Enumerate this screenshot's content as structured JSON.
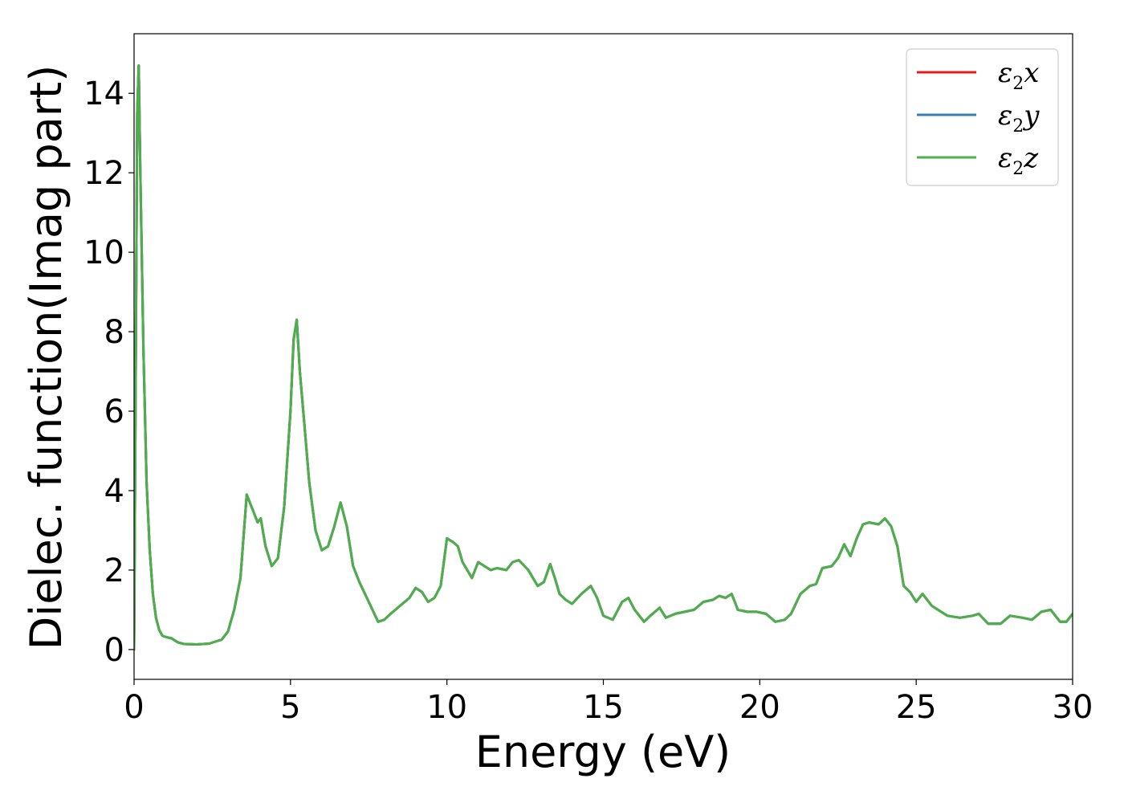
{
  "chart_data": {
    "type": "line",
    "xlabel": "Energy (eV)",
    "ylabel": "Dielec. function(Imag part)",
    "xlim": [
      0,
      30
    ],
    "ylim": [
      -0.75,
      15.5
    ],
    "xticks": [
      0,
      5,
      10,
      15,
      20,
      25,
      30
    ],
    "yticks": [
      0,
      2,
      4,
      6,
      8,
      10,
      12,
      14
    ],
    "grid": false,
    "legend_position": "top-right",
    "series": [
      {
        "name": "ε2x",
        "legend_base": "ε",
        "legend_sub": "2",
        "legend_suffix": "x",
        "color": "#e41a1c",
        "x": [
          0,
          0.05,
          0.1,
          0.15,
          0.2,
          0.3,
          0.4,
          0.5,
          0.6,
          0.7,
          0.8,
          0.9,
          1.0,
          1.2,
          1.4,
          1.6,
          2.0,
          2.4,
          2.8,
          3.0,
          3.2,
          3.4,
          3.6,
          3.8,
          3.95,
          4.05,
          4.2,
          4.4,
          4.6,
          4.8,
          5.0,
          5.1,
          5.2,
          5.3,
          5.45,
          5.6,
          5.8,
          6.0,
          6.2,
          6.4,
          6.6,
          6.8,
          7.0,
          7.2,
          7.5,
          7.8,
          8.0,
          8.2,
          8.5,
          8.8,
          9.0,
          9.2,
          9.4,
          9.6,
          9.8,
          10.0,
          10.2,
          10.35,
          10.5,
          10.8,
          11.0,
          11.2,
          11.4,
          11.6,
          11.9,
          12.1,
          12.3,
          12.6,
          12.9,
          13.1,
          13.3,
          13.45,
          13.6,
          13.8,
          14.0,
          14.3,
          14.6,
          14.8,
          15.0,
          15.3,
          15.6,
          15.8,
          16.0,
          16.3,
          16.5,
          16.8,
          17.0,
          17.3,
          17.6,
          17.9,
          18.2,
          18.5,
          18.7,
          18.9,
          19.1,
          19.3,
          19.6,
          19.9,
          20.2,
          20.5,
          20.8,
          21.0,
          21.3,
          21.6,
          21.8,
          22.0,
          22.3,
          22.5,
          22.7,
          22.9,
          23.1,
          23.3,
          23.5,
          23.8,
          24.0,
          24.2,
          24.4,
          24.6,
          24.8,
          25.0,
          25.2,
          25.5,
          25.8,
          26.0,
          26.4,
          26.8,
          27.0,
          27.3,
          27.7,
          28.0,
          28.4,
          28.7,
          29.0,
          29.3,
          29.6,
          29.8,
          30.0
        ],
        "y": [
          0,
          6.5,
          13.5,
          14.7,
          12.0,
          7.5,
          4.2,
          2.5,
          1.4,
          0.8,
          0.5,
          0.35,
          0.32,
          0.28,
          0.18,
          0.14,
          0.13,
          0.15,
          0.25,
          0.45,
          1.0,
          1.8,
          3.9,
          3.5,
          3.2,
          3.3,
          2.6,
          2.1,
          2.3,
          3.6,
          6.0,
          7.8,
          8.3,
          7.0,
          5.6,
          4.2,
          3.0,
          2.5,
          2.6,
          3.1,
          3.7,
          3.1,
          2.1,
          1.7,
          1.2,
          0.7,
          0.75,
          0.9,
          1.1,
          1.3,
          1.55,
          1.45,
          1.2,
          1.3,
          1.6,
          2.8,
          2.7,
          2.6,
          2.2,
          1.8,
          2.2,
          2.1,
          2.0,
          2.05,
          2.0,
          2.2,
          2.25,
          2.0,
          1.6,
          1.7,
          2.15,
          1.8,
          1.4,
          1.25,
          1.15,
          1.4,
          1.6,
          1.3,
          0.85,
          0.75,
          1.2,
          1.3,
          1.0,
          0.7,
          0.85,
          1.05,
          0.8,
          0.9,
          0.95,
          1.0,
          1.2,
          1.25,
          1.35,
          1.3,
          1.4,
          1.0,
          0.95,
          0.95,
          0.9,
          0.7,
          0.75,
          0.9,
          1.4,
          1.6,
          1.65,
          2.05,
          2.1,
          2.3,
          2.65,
          2.35,
          2.8,
          3.15,
          3.2,
          3.15,
          3.3,
          3.1,
          2.6,
          1.6,
          1.45,
          1.2,
          1.4,
          1.1,
          0.95,
          0.85,
          0.8,
          0.85,
          0.9,
          0.65,
          0.65,
          0.85,
          0.8,
          0.75,
          0.95,
          1.0,
          0.7,
          0.7,
          0.9
        ]
      },
      {
        "name": "ε2y",
        "legend_base": "ε",
        "legend_sub": "2",
        "legend_suffix": "y",
        "color": "#377eb8",
        "x": [
          0,
          0.05,
          0.1,
          0.15,
          0.2,
          0.3,
          0.4,
          0.5,
          0.6,
          0.7,
          0.8,
          0.9,
          1.0,
          1.2,
          1.4,
          1.6,
          2.0,
          2.4,
          2.8,
          3.0,
          3.2,
          3.4,
          3.6,
          3.8,
          3.95,
          4.05,
          4.2,
          4.4,
          4.6,
          4.8,
          5.0,
          5.1,
          5.2,
          5.3,
          5.45,
          5.6,
          5.8,
          6.0,
          6.2,
          6.4,
          6.6,
          6.8,
          7.0,
          7.2,
          7.5,
          7.8,
          8.0,
          8.2,
          8.5,
          8.8,
          9.0,
          9.2,
          9.4,
          9.6,
          9.8,
          10.0,
          10.2,
          10.35,
          10.5,
          10.8,
          11.0,
          11.2,
          11.4,
          11.6,
          11.9,
          12.1,
          12.3,
          12.6,
          12.9,
          13.1,
          13.3,
          13.45,
          13.6,
          13.8,
          14.0,
          14.3,
          14.6,
          14.8,
          15.0,
          15.3,
          15.6,
          15.8,
          16.0,
          16.3,
          16.5,
          16.8,
          17.0,
          17.3,
          17.6,
          17.9,
          18.2,
          18.5,
          18.7,
          18.9,
          19.1,
          19.3,
          19.6,
          19.9,
          20.2,
          20.5,
          20.8,
          21.0,
          21.3,
          21.6,
          21.8,
          22.0,
          22.3,
          22.5,
          22.7,
          22.9,
          23.1,
          23.3,
          23.5,
          23.8,
          24.0,
          24.2,
          24.4,
          24.6,
          24.8,
          25.0,
          25.2,
          25.5,
          25.8,
          26.0,
          26.4,
          26.8,
          27.0,
          27.3,
          27.7,
          28.0,
          28.4,
          28.7,
          29.0,
          29.3,
          29.6,
          29.8,
          30.0
        ],
        "y": [
          0,
          6.5,
          13.5,
          14.7,
          12.0,
          7.5,
          4.2,
          2.5,
          1.4,
          0.8,
          0.5,
          0.35,
          0.32,
          0.28,
          0.18,
          0.14,
          0.13,
          0.15,
          0.25,
          0.45,
          1.0,
          1.8,
          3.9,
          3.5,
          3.2,
          3.3,
          2.6,
          2.1,
          2.3,
          3.6,
          6.0,
          7.8,
          8.3,
          7.0,
          5.6,
          4.2,
          3.0,
          2.5,
          2.6,
          3.1,
          3.7,
          3.1,
          2.1,
          1.7,
          1.2,
          0.7,
          0.75,
          0.9,
          1.1,
          1.3,
          1.55,
          1.45,
          1.2,
          1.3,
          1.6,
          2.8,
          2.7,
          2.6,
          2.2,
          1.8,
          2.2,
          2.1,
          2.0,
          2.05,
          2.0,
          2.2,
          2.25,
          2.0,
          1.6,
          1.7,
          2.15,
          1.8,
          1.4,
          1.25,
          1.15,
          1.4,
          1.6,
          1.3,
          0.85,
          0.75,
          1.2,
          1.3,
          1.0,
          0.7,
          0.85,
          1.05,
          0.8,
          0.9,
          0.95,
          1.0,
          1.2,
          1.25,
          1.35,
          1.3,
          1.4,
          1.0,
          0.95,
          0.95,
          0.9,
          0.7,
          0.75,
          0.9,
          1.4,
          1.6,
          1.65,
          2.05,
          2.1,
          2.3,
          2.65,
          2.35,
          2.8,
          3.15,
          3.2,
          3.15,
          3.3,
          3.1,
          2.6,
          1.6,
          1.45,
          1.2,
          1.4,
          1.1,
          0.95,
          0.85,
          0.8,
          0.85,
          0.9,
          0.65,
          0.65,
          0.85,
          0.8,
          0.75,
          0.95,
          1.0,
          0.7,
          0.7,
          0.9
        ]
      },
      {
        "name": "ε2z",
        "legend_base": "ε",
        "legend_sub": "2",
        "legend_suffix": "z",
        "color": "#4daf4a",
        "x": [
          0,
          0.05,
          0.1,
          0.15,
          0.2,
          0.3,
          0.4,
          0.5,
          0.6,
          0.7,
          0.8,
          0.9,
          1.0,
          1.2,
          1.4,
          1.6,
          2.0,
          2.4,
          2.8,
          3.0,
          3.2,
          3.4,
          3.6,
          3.8,
          3.95,
          4.05,
          4.2,
          4.4,
          4.6,
          4.8,
          5.0,
          5.1,
          5.2,
          5.3,
          5.45,
          5.6,
          5.8,
          6.0,
          6.2,
          6.4,
          6.6,
          6.8,
          7.0,
          7.2,
          7.5,
          7.8,
          8.0,
          8.2,
          8.5,
          8.8,
          9.0,
          9.2,
          9.4,
          9.6,
          9.8,
          10.0,
          10.2,
          10.35,
          10.5,
          10.8,
          11.0,
          11.2,
          11.4,
          11.6,
          11.9,
          12.1,
          12.3,
          12.6,
          12.9,
          13.1,
          13.3,
          13.45,
          13.6,
          13.8,
          14.0,
          14.3,
          14.6,
          14.8,
          15.0,
          15.3,
          15.6,
          15.8,
          16.0,
          16.3,
          16.5,
          16.8,
          17.0,
          17.3,
          17.6,
          17.9,
          18.2,
          18.5,
          18.7,
          18.9,
          19.1,
          19.3,
          19.6,
          19.9,
          20.2,
          20.5,
          20.8,
          21.0,
          21.3,
          21.6,
          21.8,
          22.0,
          22.3,
          22.5,
          22.7,
          22.9,
          23.1,
          23.3,
          23.5,
          23.8,
          24.0,
          24.2,
          24.4,
          24.6,
          24.8,
          25.0,
          25.2,
          25.5,
          25.8,
          26.0,
          26.4,
          26.8,
          27.0,
          27.3,
          27.7,
          28.0,
          28.4,
          28.7,
          29.0,
          29.3,
          29.6,
          29.8,
          30.0
        ],
        "y": [
          0,
          6.5,
          13.5,
          14.7,
          12.0,
          7.5,
          4.2,
          2.5,
          1.4,
          0.8,
          0.5,
          0.35,
          0.32,
          0.28,
          0.18,
          0.14,
          0.13,
          0.15,
          0.25,
          0.45,
          1.0,
          1.8,
          3.9,
          3.5,
          3.2,
          3.3,
          2.6,
          2.1,
          2.3,
          3.6,
          6.0,
          7.8,
          8.3,
          7.0,
          5.6,
          4.2,
          3.0,
          2.5,
          2.6,
          3.1,
          3.7,
          3.1,
          2.1,
          1.7,
          1.2,
          0.7,
          0.75,
          0.9,
          1.1,
          1.3,
          1.55,
          1.45,
          1.2,
          1.3,
          1.6,
          2.8,
          2.7,
          2.6,
          2.2,
          1.8,
          2.2,
          2.1,
          2.0,
          2.05,
          2.0,
          2.2,
          2.25,
          2.0,
          1.6,
          1.7,
          2.15,
          1.8,
          1.4,
          1.25,
          1.15,
          1.4,
          1.6,
          1.3,
          0.85,
          0.75,
          1.2,
          1.3,
          1.0,
          0.7,
          0.85,
          1.05,
          0.8,
          0.9,
          0.95,
          1.0,
          1.2,
          1.25,
          1.35,
          1.3,
          1.4,
          1.0,
          0.95,
          0.95,
          0.9,
          0.7,
          0.75,
          0.9,
          1.4,
          1.6,
          1.65,
          2.05,
          2.1,
          2.3,
          2.65,
          2.35,
          2.8,
          3.15,
          3.2,
          3.15,
          3.3,
          3.1,
          2.6,
          1.6,
          1.45,
          1.2,
          1.4,
          1.1,
          0.95,
          0.85,
          0.8,
          0.85,
          0.9,
          0.65,
          0.65,
          0.85,
          0.8,
          0.75,
          0.95,
          1.0,
          0.7,
          0.7,
          0.9
        ]
      }
    ]
  }
}
